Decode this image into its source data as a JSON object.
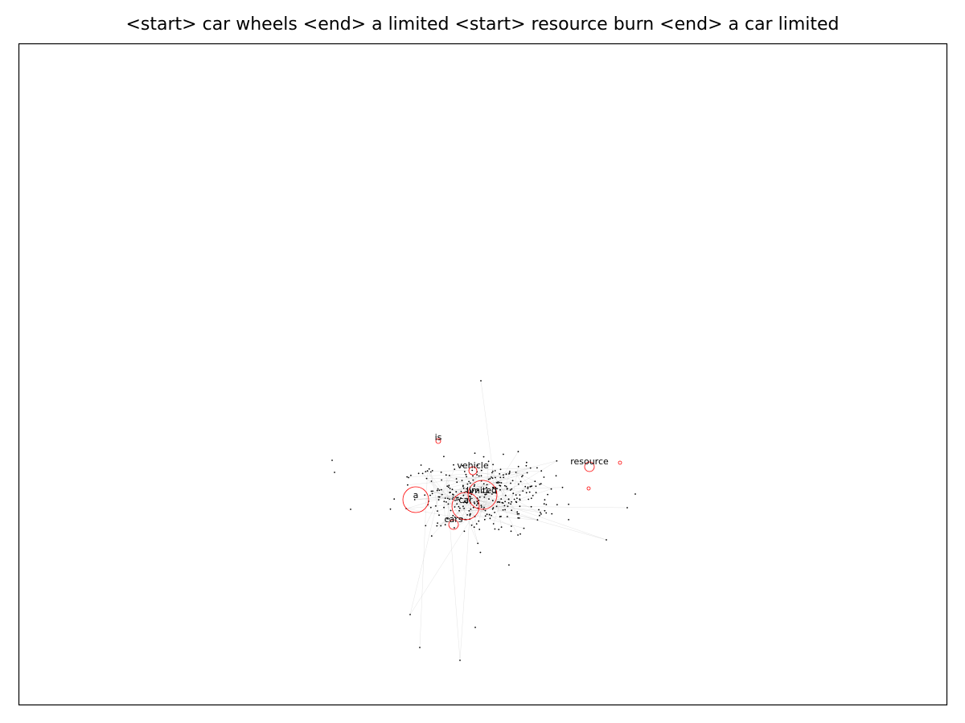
{
  "title": "<start> car wheels <end> a limited <start> resource burn <end> a car limited",
  "colors": {
    "highlight": "#ff0000",
    "node": "#000000",
    "edge": "#d0d0d0",
    "frame": "#000000"
  },
  "highlighted_nodes": [
    {
      "id": "a",
      "label": "a"
    },
    {
      "id": "car",
      "label": "car"
    },
    {
      "id": "limited",
      "label": "limited"
    },
    {
      "id": "vehicle",
      "label": "vehicle"
    },
    {
      "id": "is",
      "label": "is"
    },
    {
      "id": "cars",
      "label": "cars"
    },
    {
      "id": "resource",
      "label": "resource"
    },
    {
      "id": "resource-2",
      "label": ""
    },
    {
      "id": "resource-3",
      "label": ""
    }
  ]
}
